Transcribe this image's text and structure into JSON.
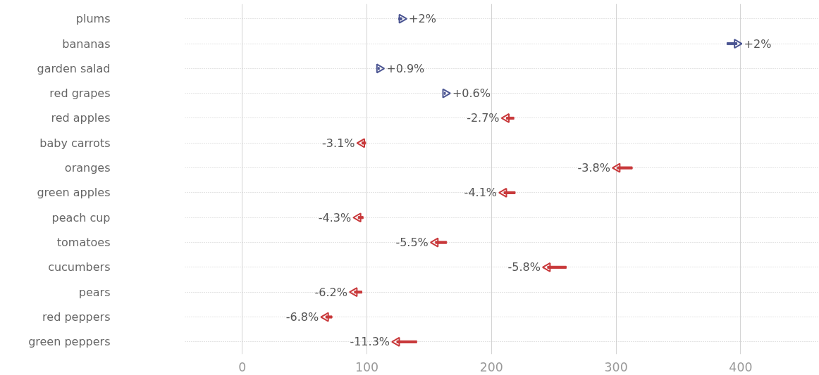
{
  "chart_data": {
    "type": "bar",
    "orientation": "horizontal",
    "categories": [
      "plums",
      "bananas",
      "garden salad",
      "red grapes",
      "red apples",
      "baby carrots",
      "oranges",
      "green apples",
      "peach cup",
      "tomatoes",
      "cucumbers",
      "pears",
      "red peppers",
      "green peppers"
    ],
    "series": [
      {
        "base": [
          125.5,
          389,
          109,
          162,
          218,
          99,
          313,
          219,
          97,
          164,
          260,
          96,
          72,
          140
        ],
        "values": [
          2.5,
          8,
          1,
          1,
          -6,
          -3,
          -12,
          -9,
          -4,
          -9,
          -15,
          -6,
          -5,
          -16
        ],
        "colors": [
          "#4b5592",
          "#4b5592",
          "#4b5592",
          "#4b5592",
          "#c8383a",
          "#c8383a",
          "#c8383a",
          "#c8383a",
          "#c8383a",
          "#c8383a",
          "#c8383a",
          "#c8383a",
          "#c8383a",
          "#c8383a"
        ]
      },
      {
        "type": "scatter",
        "marker": "triangle",
        "values": [
          128,
          397,
          110,
          163,
          212,
          96,
          301,
          210,
          93,
          155,
          245,
          90,
          67,
          124
        ],
        "colors": [
          "#4b5592",
          "#4b5592",
          "#4b5592",
          "#4b5592",
          "#c8383a",
          "#c8383a",
          "#c8383a",
          "#c8383a",
          "#c8383a",
          "#c8383a",
          "#c8383a",
          "#c8383a",
          "#c8383a",
          "#c8383a"
        ]
      }
    ],
    "annotations": [
      {
        "text": "+2%",
        "x": 128,
        "y": "plums"
      },
      {
        "text": "+2%",
        "x": 397,
        "y": "bananas"
      },
      {
        "text": "+0.9%",
        "x": 110,
        "y": "garden salad"
      },
      {
        "text": "+0.6%",
        "x": 163,
        "y": "red grapes"
      },
      {
        "text": "-2.7%",
        "x": 212,
        "y": "red apples"
      },
      {
        "text": "-3.1%",
        "x": 96,
        "y": "baby carrots"
      },
      {
        "text": "-3.8%",
        "x": 301,
        "y": "oranges"
      },
      {
        "text": "-4.1%",
        "x": 210,
        "y": "green apples"
      },
      {
        "text": "-4.3%",
        "x": 93,
        "y": "peach cup"
      },
      {
        "text": "-5.5%",
        "x": 155,
        "y": "tomatoes"
      },
      {
        "text": "-5.8%",
        "x": 245,
        "y": "cucumbers"
      },
      {
        "text": "-6.2%",
        "x": 90,
        "y": "pears"
      },
      {
        "text": "-6.8%",
        "x": 67,
        "y": "red peppers"
      },
      {
        "text": "-11.3%",
        "x": 124,
        "y": "green peppers"
      }
    ],
    "xlim": [
      -46,
      462
    ],
    "xticks": [
      0,
      100,
      200,
      300,
      400
    ],
    "grid": true
  }
}
